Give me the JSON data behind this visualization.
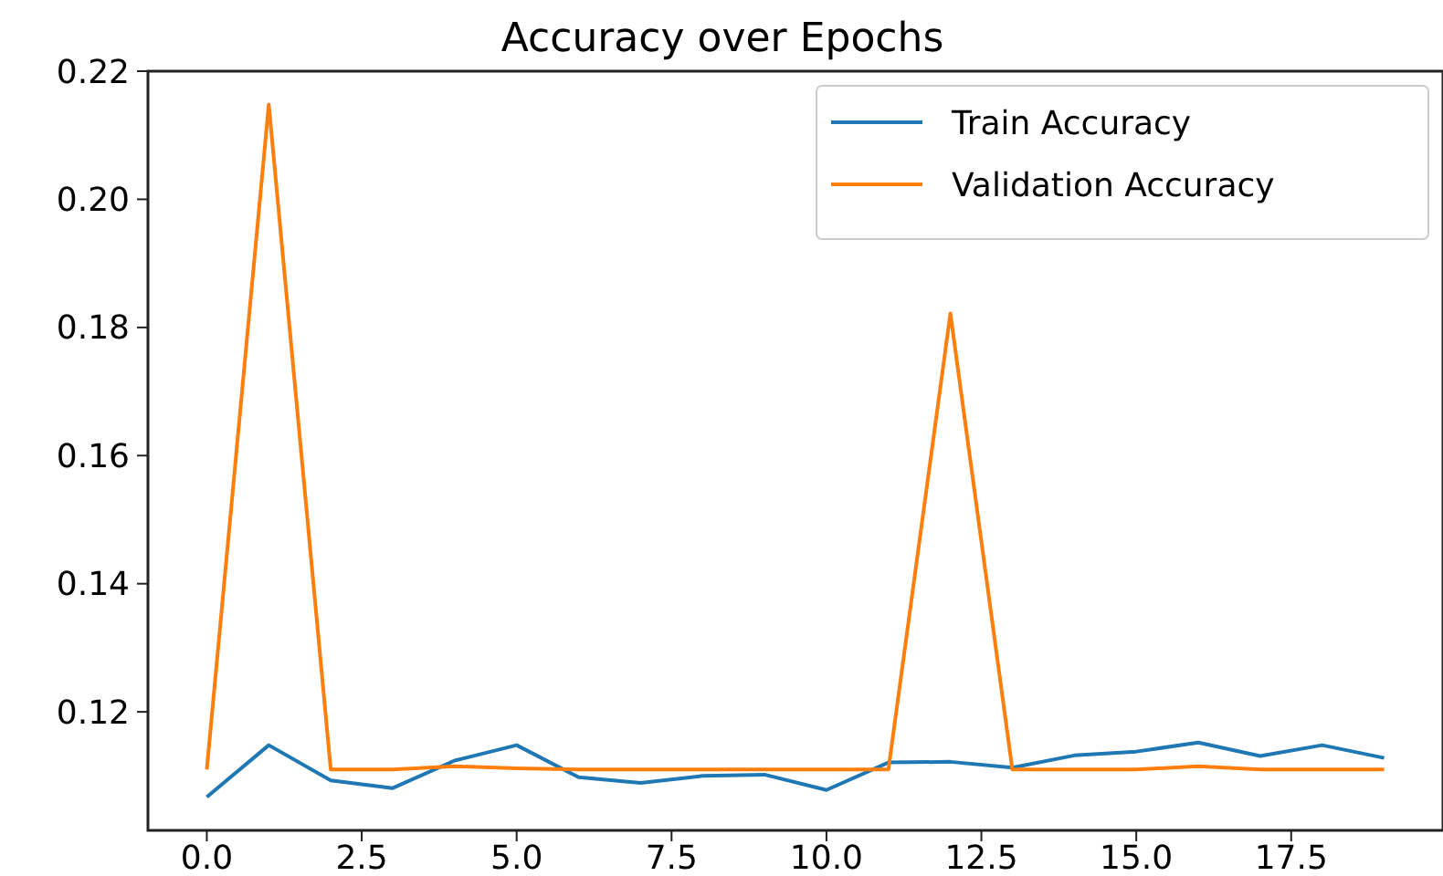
{
  "chart_data": {
    "type": "line",
    "title": "Accuracy over Epochs",
    "x": [
      0,
      1,
      2,
      3,
      4,
      5,
      6,
      7,
      8,
      9,
      10,
      11,
      12,
      13,
      14,
      15,
      16,
      17,
      18,
      19
    ],
    "series": [
      {
        "name": "Train Accuracy",
        "color": "#1f77b4",
        "values": [
          0.1067,
          0.1148,
          0.1093,
          0.1081,
          0.1124,
          0.1148,
          0.1098,
          0.1089,
          0.11,
          0.1102,
          0.1078,
          0.1121,
          0.1122,
          0.1113,
          0.1132,
          0.1138,
          0.1152,
          0.1131,
          0.1148,
          0.1128
        ]
      },
      {
        "name": "Validation Accuracy",
        "color": "#ff7f0e",
        "values": [
          0.111,
          0.2148,
          0.111,
          0.111,
          0.1115,
          0.1112,
          0.111,
          0.111,
          0.111,
          0.111,
          0.111,
          0.111,
          0.1822,
          0.111,
          0.111,
          0.111,
          0.1115,
          0.111,
          0.111,
          0.111
        ]
      }
    ],
    "xlim": [
      -0.95,
      19.95
    ],
    "ylim": [
      0.1015,
      0.22
    ],
    "xticks": [
      {
        "value": 0,
        "label": "0.0"
      },
      {
        "value": 2.5,
        "label": "2.5"
      },
      {
        "value": 5,
        "label": "5.0"
      },
      {
        "value": 7.5,
        "label": "7.5"
      },
      {
        "value": 10,
        "label": "10.0"
      },
      {
        "value": 12.5,
        "label": "12.5"
      },
      {
        "value": 15,
        "label": "15.0"
      },
      {
        "value": 17.5,
        "label": "17.5"
      }
    ],
    "yticks": [
      {
        "value": 0.12,
        "label": "0.12"
      },
      {
        "value": 0.14,
        "label": "0.14"
      },
      {
        "value": 0.16,
        "label": "0.16"
      },
      {
        "value": 0.18,
        "label": "0.18"
      },
      {
        "value": 0.2,
        "label": "0.20"
      },
      {
        "value": 0.22,
        "label": "0.22"
      }
    ],
    "legend": "top right",
    "grid": false
  }
}
